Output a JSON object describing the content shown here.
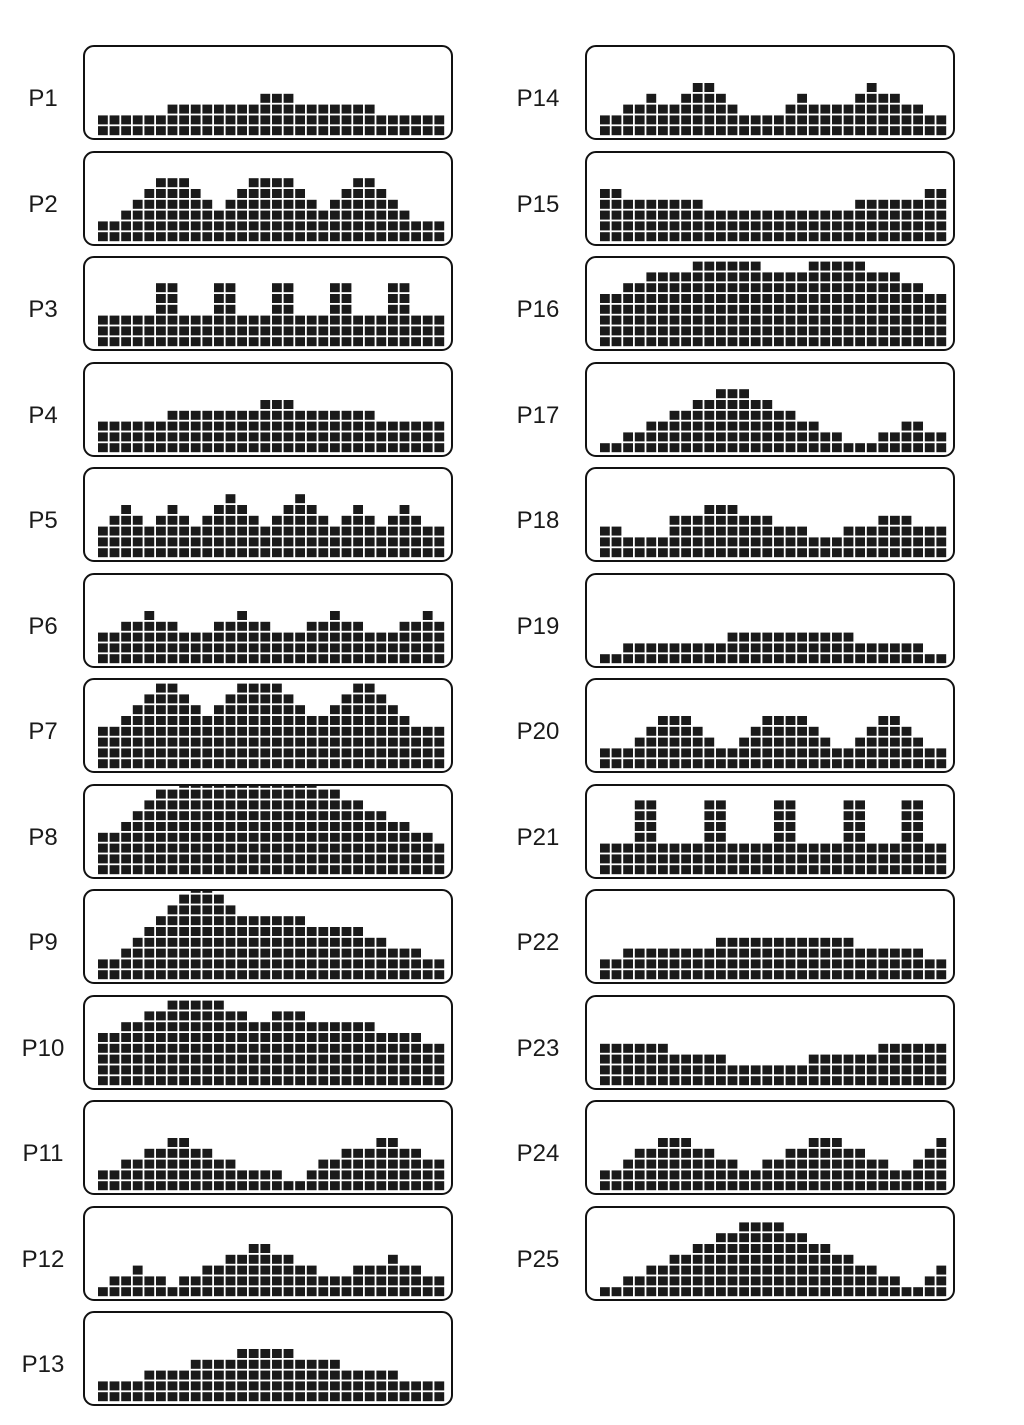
{
  "style": {
    "block_color": "#1a1a1a",
    "border_color": "#111111",
    "background": "#ffffff"
  },
  "programs": [
    {
      "label": "P1",
      "levels": [
        2,
        2,
        2,
        2,
        2,
        2,
        3,
        3,
        3,
        3,
        3,
        3,
        3,
        3,
        4,
        4,
        4,
        3,
        3,
        3,
        3,
        3,
        3,
        3,
        2,
        2,
        2,
        2,
        2,
        2
      ]
    },
    {
      "label": "P2",
      "levels": [
        2,
        2,
        3,
        4,
        5,
        6,
        6,
        6,
        5,
        4,
        3,
        4,
        5,
        6,
        6,
        6,
        6,
        5,
        4,
        3,
        4,
        5,
        6,
        6,
        5,
        4,
        3,
        2,
        2,
        2
      ]
    },
    {
      "label": "P3",
      "levels": [
        3,
        3,
        3,
        3,
        3,
        6,
        6,
        3,
        3,
        3,
        6,
        6,
        3,
        3,
        3,
        6,
        6,
        3,
        3,
        3,
        6,
        6,
        3,
        3,
        3,
        6,
        6,
        3,
        3,
        3
      ]
    },
    {
      "label": "P4",
      "levels": [
        3,
        3,
        3,
        3,
        3,
        3,
        4,
        4,
        4,
        4,
        4,
        4,
        4,
        4,
        5,
        5,
        5,
        4,
        4,
        4,
        4,
        4,
        4,
        4,
        3,
        3,
        3,
        3,
        3,
        3
      ]
    },
    {
      "label": "P5",
      "levels": [
        3,
        4,
        5,
        4,
        3,
        4,
        5,
        4,
        3,
        4,
        5,
        6,
        5,
        4,
        3,
        4,
        5,
        6,
        5,
        4,
        3,
        4,
        5,
        4,
        3,
        4,
        5,
        4,
        3,
        3
      ]
    },
    {
      "label": "P6",
      "levels": [
        3,
        3,
        4,
        4,
        5,
        4,
        4,
        3,
        3,
        3,
        4,
        4,
        5,
        4,
        4,
        3,
        3,
        3,
        4,
        4,
        5,
        4,
        4,
        3,
        3,
        3,
        4,
        4,
        5,
        4
      ]
    },
    {
      "label": "P7",
      "levels": [
        4,
        4,
        5,
        6,
        7,
        8,
        8,
        7,
        6,
        5,
        6,
        7,
        8,
        8,
        8,
        8,
        7,
        6,
        5,
        5,
        6,
        7,
        8,
        8,
        7,
        6,
        5,
        4,
        4,
        4
      ]
    },
    {
      "label": "P8",
      "levels": [
        4,
        4,
        5,
        6,
        7,
        8,
        8,
        9,
        9,
        9,
        9,
        9,
        9,
        9,
        9,
        9,
        9,
        9,
        9,
        8,
        8,
        7,
        7,
        6,
        6,
        5,
        5,
        4,
        4,
        3
      ]
    },
    {
      "label": "P9",
      "levels": [
        2,
        2,
        3,
        4,
        5,
        6,
        7,
        8,
        9,
        9,
        8,
        7,
        6,
        6,
        6,
        6,
        6,
        6,
        5,
        5,
        5,
        5,
        5,
        4,
        4,
        3,
        3,
        3,
        2,
        2
      ]
    },
    {
      "label": "P10",
      "levels": [
        5,
        5,
        6,
        6,
        7,
        7,
        8,
        8,
        8,
        8,
        8,
        7,
        7,
        6,
        6,
        7,
        7,
        7,
        6,
        6,
        6,
        6,
        6,
        6,
        5,
        5,
        5,
        5,
        4,
        4
      ]
    },
    {
      "label": "P11",
      "levels": [
        2,
        2,
        3,
        3,
        4,
        4,
        5,
        5,
        4,
        4,
        3,
        3,
        2,
        2,
        2,
        2,
        1,
        1,
        2,
        3,
        3,
        4,
        4,
        4,
        5,
        5,
        4,
        4,
        3,
        3
      ]
    },
    {
      "label": "P12",
      "levels": [
        1,
        2,
        2,
        3,
        2,
        2,
        1,
        2,
        2,
        3,
        3,
        4,
        4,
        5,
        5,
        4,
        4,
        3,
        3,
        2,
        2,
        2,
        3,
        3,
        3,
        4,
        3,
        3,
        2,
        2
      ]
    },
    {
      "label": "P13",
      "levels": [
        2,
        2,
        2,
        2,
        3,
        3,
        3,
        3,
        4,
        4,
        4,
        4,
        5,
        5,
        5,
        5,
        5,
        4,
        4,
        4,
        4,
        3,
        3,
        3,
        3,
        3,
        2,
        2,
        2,
        2
      ]
    },
    {
      "label": "P14",
      "levels": [
        2,
        2,
        3,
        3,
        4,
        3,
        3,
        4,
        5,
        5,
        4,
        3,
        2,
        2,
        2,
        2,
        3,
        4,
        3,
        3,
        3,
        3,
        4,
        5,
        4,
        4,
        3,
        3,
        2,
        2
      ]
    },
    {
      "label": "P15",
      "levels": [
        5,
        5,
        4,
        4,
        4,
        4,
        4,
        4,
        4,
        3,
        3,
        3,
        3,
        3,
        3,
        3,
        3,
        3,
        3,
        3,
        3,
        3,
        4,
        4,
        4,
        4,
        4,
        4,
        5,
        5
      ]
    },
    {
      "label": "P16",
      "levels": [
        5,
        5,
        6,
        6,
        7,
        7,
        7,
        7,
        8,
        8,
        8,
        8,
        8,
        8,
        7,
        7,
        7,
        7,
        8,
        8,
        8,
        8,
        8,
        7,
        7,
        7,
        6,
        6,
        5,
        5
      ]
    },
    {
      "label": "P17",
      "levels": [
        1,
        1,
        2,
        2,
        3,
        3,
        4,
        4,
        5,
        5,
        6,
        6,
        6,
        5,
        5,
        4,
        4,
        3,
        3,
        2,
        2,
        1,
        1,
        1,
        2,
        2,
        3,
        3,
        2,
        2
      ]
    },
    {
      "label": "P18",
      "levels": [
        3,
        3,
        2,
        2,
        2,
        2,
        4,
        4,
        4,
        5,
        5,
        5,
        4,
        4,
        4,
        3,
        3,
        3,
        2,
        2,
        2,
        3,
        3,
        3,
        4,
        4,
        4,
        3,
        3,
        3
      ]
    },
    {
      "label": "P19",
      "levels": [
        1,
        1,
        2,
        2,
        2,
        2,
        2,
        2,
        2,
        2,
        2,
        3,
        3,
        3,
        3,
        3,
        3,
        3,
        3,
        3,
        3,
        3,
        2,
        2,
        2,
        2,
        2,
        2,
        1,
        1
      ]
    },
    {
      "label": "P20",
      "levels": [
        2,
        2,
        2,
        3,
        4,
        5,
        5,
        5,
        4,
        3,
        2,
        2,
        3,
        4,
        5,
        5,
        5,
        5,
        4,
        3,
        2,
        2,
        3,
        4,
        5,
        5,
        4,
        3,
        2,
        2
      ]
    },
    {
      "label": "P21",
      "levels": [
        3,
        3,
        3,
        7,
        7,
        3,
        3,
        3,
        3,
        7,
        7,
        3,
        3,
        3,
        3,
        7,
        7,
        3,
        3,
        3,
        3,
        7,
        7,
        3,
        3,
        3,
        7,
        7,
        3,
        3
      ]
    },
    {
      "label": "P22",
      "levels": [
        2,
        2,
        3,
        3,
        3,
        3,
        3,
        3,
        3,
        3,
        4,
        4,
        4,
        4,
        4,
        4,
        4,
        4,
        4,
        4,
        4,
        4,
        3,
        3,
        3,
        3,
        3,
        3,
        2,
        2
      ]
    },
    {
      "label": "P23",
      "levels": [
        4,
        4,
        4,
        4,
        4,
        4,
        3,
        3,
        3,
        3,
        3,
        2,
        2,
        2,
        2,
        2,
        2,
        2,
        3,
        3,
        3,
        3,
        3,
        3,
        4,
        4,
        4,
        4,
        4,
        4
      ]
    },
    {
      "label": "P24",
      "levels": [
        2,
        2,
        3,
        4,
        4,
        5,
        5,
        5,
        4,
        4,
        3,
        3,
        2,
        2,
        3,
        3,
        4,
        4,
        5,
        5,
        5,
        4,
        4,
        3,
        3,
        2,
        2,
        3,
        4,
        5
      ]
    },
    {
      "label": "P25",
      "levels": [
        1,
        1,
        2,
        2,
        3,
        3,
        4,
        4,
        5,
        5,
        6,
        6,
        7,
        7,
        7,
        7,
        6,
        6,
        5,
        5,
        4,
        4,
        3,
        3,
        2,
        2,
        1,
        1,
        2,
        3
      ]
    }
  ]
}
